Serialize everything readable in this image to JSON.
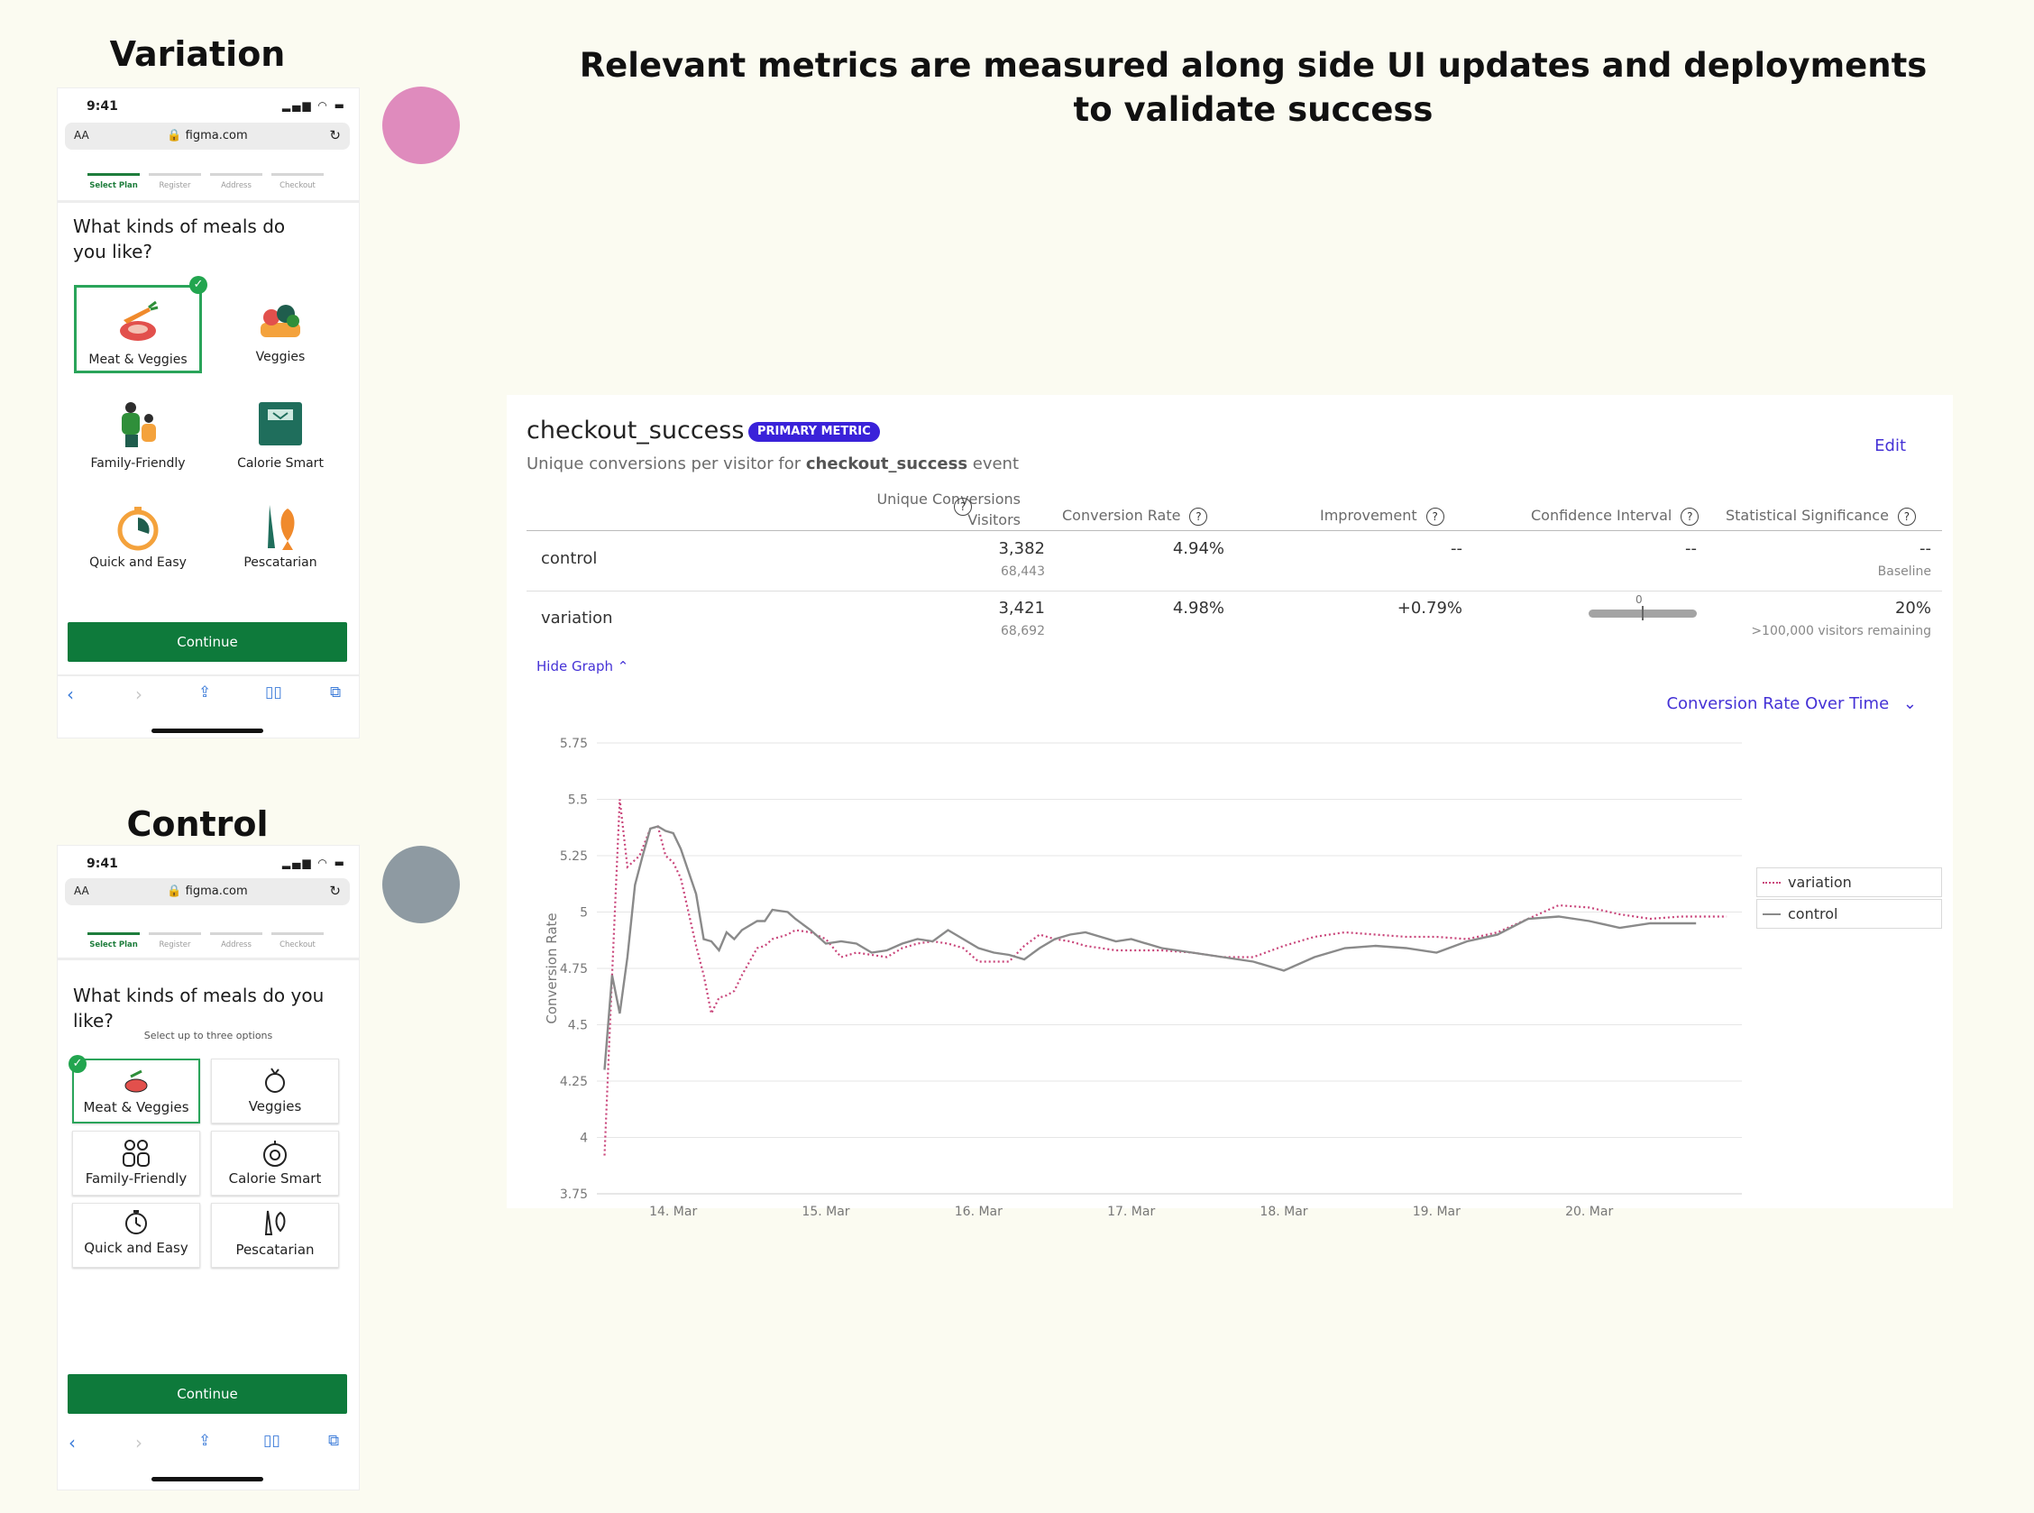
{
  "page": {
    "heading": "Relevant metrics are measured along side UI updates and deployments to validate success"
  },
  "variation": {
    "label": "Variation",
    "time": "9:41",
    "url": "figma.com",
    "aa": "AA",
    "steps": [
      "Select Plan",
      "Register",
      "Address",
      "Checkout"
    ],
    "question": "What kinds of meals do you like?",
    "options": [
      "Meat & Veggies",
      "Veggies",
      "Family-Friendly",
      "Calorie Smart",
      "Quick and Easy",
      "Pescatarian"
    ],
    "continue": "Continue",
    "dot_color": "#df8bbd"
  },
  "control": {
    "label": "Control",
    "time": "9:41",
    "url": "figma.com",
    "aa": "AA",
    "steps": [
      "Select Plan",
      "Register",
      "Address",
      "Checkout"
    ],
    "question": "What kinds of meals do you like?",
    "subtitle": "Select up to three options",
    "options": [
      "Meat & Veggies",
      "Veggies",
      "Family-Friendly",
      "Calorie Smart",
      "Quick and Easy",
      "Pescatarian"
    ],
    "continue": "Continue",
    "dot_color": "#8e9aa2"
  },
  "metric": {
    "name": "checkout_success",
    "badge": "PRIMARY METRIC",
    "desc_prefix": "Unique conversions per visitor for ",
    "desc_event": "checkout_success",
    "desc_suffix": " event",
    "edit": "Edit",
    "headers": {
      "uc_line1": "Unique Conversions",
      "uc_line2": "Visitors",
      "rate": "Conversion Rate",
      "improvement": "Improvement",
      "ci": "Confidence Interval",
      "sig": "Statistical Significance"
    },
    "rows": [
      {
        "name": "control",
        "conversions": "3,382",
        "visitors": "68,443",
        "rate": "4.94%",
        "improvement": "--",
        "ci": "--",
        "sig": "--",
        "sig_sub": "Baseline"
      },
      {
        "name": "variation",
        "conversions": "3,421",
        "visitors": "68,692",
        "rate": "4.98%",
        "improvement": "+0.79%",
        "ci_zero": "0",
        "sig": "20%",
        "sig_sub": ">100,000 visitors remaining"
      }
    ],
    "hide_graph": "Hide Graph",
    "chart_selector": "Conversion Rate Over Time"
  },
  "colors": {
    "variation_line": "#c9457a",
    "control_line": "#8a8a8a",
    "accent": "#4532d6",
    "cta_green": "#0e7a3b"
  },
  "chart_data": {
    "type": "line",
    "ylabel": "Conversion Rate",
    "xlabel": "",
    "ylim": [
      3.75,
      5.75
    ],
    "yticks": [
      "5.75",
      "5.5",
      "5.25",
      "5",
      "4.75",
      "4.5",
      "4.25",
      "4",
      "3.75"
    ],
    "xticks": [
      {
        "label": "14. Mar",
        "x": 14
      },
      {
        "label": "15. Mar",
        "x": 15
      },
      {
        "label": "16. Mar",
        "x": 16
      },
      {
        "label": "17. Mar",
        "x": 17
      },
      {
        "label": "18. Mar",
        "x": 18
      },
      {
        "label": "19. Mar",
        "x": 19
      },
      {
        "label": "20. Mar",
        "x": 20
      }
    ],
    "legend": "right",
    "series": [
      {
        "name": "variation",
        "style": "dotted",
        "x": [
          13.55,
          13.6,
          13.65,
          13.7,
          13.78,
          13.85,
          13.9,
          13.95,
          14.0,
          14.05,
          14.1,
          14.15,
          14.2,
          14.25,
          14.3,
          14.35,
          14.4,
          14.45,
          14.55,
          14.6,
          14.65,
          14.75,
          14.8,
          14.9,
          15.0,
          15.1,
          15.2,
          15.3,
          15.4,
          15.5,
          15.6,
          15.7,
          15.8,
          15.9,
          16.0,
          16.1,
          16.2,
          16.3,
          16.4,
          16.5,
          16.6,
          16.7,
          16.8,
          16.9,
          17.0,
          17.2,
          17.4,
          17.6,
          17.8,
          18.0,
          18.2,
          18.4,
          18.6,
          18.8,
          19.0,
          19.2,
          19.4,
          19.6,
          19.8,
          20.0,
          20.2,
          20.4,
          20.6,
          20.8,
          20.9
        ],
        "y": [
          3.92,
          4.72,
          5.5,
          5.2,
          5.25,
          5.37,
          5.38,
          5.25,
          5.22,
          5.15,
          5.0,
          4.85,
          4.72,
          4.55,
          4.62,
          4.63,
          4.65,
          4.72,
          4.84,
          4.85,
          4.88,
          4.9,
          4.92,
          4.91,
          4.88,
          4.8,
          4.82,
          4.81,
          4.8,
          4.84,
          4.86,
          4.87,
          4.86,
          4.84,
          4.78,
          4.78,
          4.78,
          4.85,
          4.9,
          4.88,
          4.87,
          4.85,
          4.84,
          4.83,
          4.83,
          4.83,
          4.82,
          4.8,
          4.8,
          4.85,
          4.89,
          4.91,
          4.9,
          4.89,
          4.89,
          4.88,
          4.91,
          4.97,
          5.03,
          5.02,
          4.99,
          4.97,
          4.98,
          4.98,
          4.98
        ]
      },
      {
        "name": "control",
        "style": "solid",
        "x": [
          13.55,
          13.6,
          13.65,
          13.7,
          13.75,
          13.8,
          13.85,
          13.9,
          13.95,
          14.0,
          14.05,
          14.1,
          14.15,
          14.2,
          14.25,
          14.3,
          14.35,
          14.4,
          14.45,
          14.55,
          14.6,
          14.65,
          14.75,
          14.8,
          14.9,
          15.0,
          15.1,
          15.2,
          15.3,
          15.4,
          15.5,
          15.6,
          15.7,
          15.8,
          15.9,
          16.0,
          16.1,
          16.2,
          16.3,
          16.4,
          16.5,
          16.6,
          16.7,
          16.8,
          16.9,
          17.0,
          17.2,
          17.4,
          17.6,
          17.8,
          18.0,
          18.2,
          18.4,
          18.6,
          18.8,
          19.0,
          19.2,
          19.4,
          19.6,
          19.8,
          20.0,
          20.2,
          20.4,
          20.6,
          20.7
        ],
        "y": [
          4.3,
          4.72,
          4.55,
          4.8,
          5.12,
          5.25,
          5.37,
          5.38,
          5.36,
          5.35,
          5.28,
          5.18,
          5.08,
          4.88,
          4.87,
          4.83,
          4.91,
          4.88,
          4.92,
          4.96,
          4.96,
          5.01,
          5.0,
          4.97,
          4.92,
          4.86,
          4.87,
          4.86,
          4.82,
          4.83,
          4.86,
          4.88,
          4.87,
          4.92,
          4.88,
          4.84,
          4.82,
          4.81,
          4.79,
          4.84,
          4.88,
          4.9,
          4.91,
          4.89,
          4.87,
          4.88,
          4.84,
          4.82,
          4.8,
          4.78,
          4.74,
          4.8,
          4.84,
          4.85,
          4.84,
          4.82,
          4.87,
          4.9,
          4.97,
          4.98,
          4.96,
          4.93,
          4.95,
          4.95,
          4.95
        ]
      }
    ]
  }
}
